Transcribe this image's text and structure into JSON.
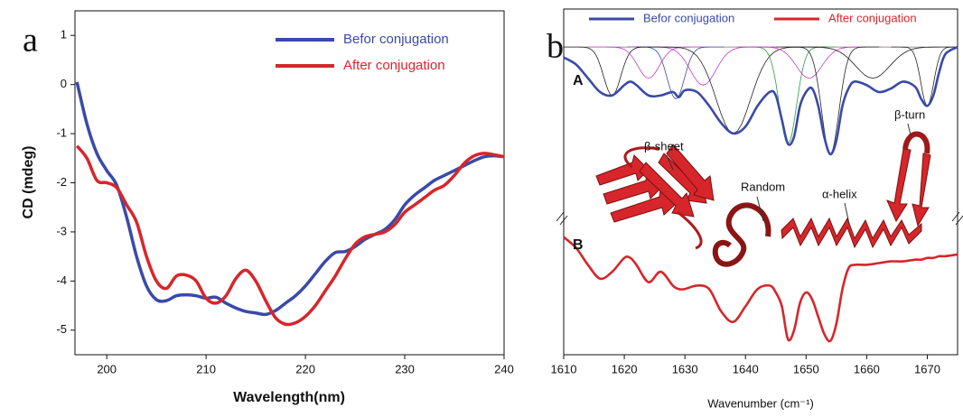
{
  "chart_data": [
    {
      "type": "line",
      "panel_label": "a",
      "x_label": "Wavelength(nm)",
      "y_label": "CD (mdeg)",
      "xlim": [
        196.8,
        240
      ],
      "xticks": [
        200,
        210,
        220,
        230,
        240
      ],
      "ylim": [
        -5.5,
        1.5
      ],
      "yticks": [
        1,
        0,
        -1,
        -2,
        -3,
        -4,
        -5
      ],
      "legend": "upper right",
      "x": [
        197,
        198,
        199,
        200,
        201,
        202,
        203,
        204,
        205,
        206,
        207,
        208,
        209,
        210,
        211,
        212,
        213,
        214,
        215,
        216,
        217,
        218,
        219,
        220,
        221,
        222,
        223,
        224,
        225,
        226,
        227,
        228,
        229,
        230,
        231,
        232,
        233,
        234,
        235,
        236,
        237,
        238,
        239,
        240
      ],
      "series": [
        {
          "name": "Befor conjugation",
          "color": "#3a4aa8",
          "values": [
            0.05,
            -0.8,
            -1.4,
            -1.75,
            -2.05,
            -2.7,
            -3.5,
            -4.1,
            -4.38,
            -4.4,
            -4.3,
            -4.28,
            -4.3,
            -4.35,
            -4.33,
            -4.45,
            -4.55,
            -4.62,
            -4.65,
            -4.68,
            -4.6,
            -4.45,
            -4.3,
            -4.1,
            -3.85,
            -3.6,
            -3.42,
            -3.4,
            -3.3,
            -3.15,
            -3.05,
            -2.95,
            -2.75,
            -2.45,
            -2.25,
            -2.1,
            -1.95,
            -1.85,
            -1.75,
            -1.65,
            -1.55,
            -1.47,
            -1.45,
            -1.47
          ]
        },
        {
          "name": "After conjugation",
          "color": "#d7262b",
          "values": [
            -1.25,
            -1.5,
            -1.95,
            -2.0,
            -2.1,
            -2.45,
            -2.8,
            -3.5,
            -4.0,
            -4.15,
            -3.9,
            -3.88,
            -4.0,
            -4.35,
            -4.45,
            -4.3,
            -3.95,
            -3.78,
            -4.0,
            -4.4,
            -4.75,
            -4.88,
            -4.85,
            -4.72,
            -4.5,
            -4.2,
            -3.9,
            -3.55,
            -3.25,
            -3.1,
            -3.05,
            -3.0,
            -2.85,
            -2.6,
            -2.45,
            -2.3,
            -2.15,
            -2.05,
            -1.85,
            -1.6,
            -1.45,
            -1.4,
            -1.43,
            -1.47
          ]
        }
      ]
    },
    {
      "type": "line",
      "panel_label": "b",
      "x_label": "Wavenumber (cm⁻¹)",
      "xlim": [
        1610,
        1675
      ],
      "xticks": [
        1610,
        1620,
        1630,
        1640,
        1650,
        1660,
        1670
      ],
      "ylim": [
        0,
        100
      ],
      "legend": "top",
      "x": [
        1610,
        1612,
        1614,
        1616,
        1618,
        1620,
        1621,
        1622,
        1624,
        1626,
        1628,
        1629,
        1630,
        1632,
        1634,
        1636,
        1638,
        1640,
        1642,
        1644,
        1645,
        1646,
        1647,
        1648,
        1649,
        1650,
        1651,
        1652,
        1653,
        1654,
        1655,
        1656,
        1657,
        1658,
        1660,
        1662,
        1664,
        1666,
        1668,
        1669,
        1670,
        1671,
        1672,
        1673,
        1675
      ],
      "series": [
        {
          "name": "Befor conjugation",
          "tag": "A",
          "color": "#3a4aa8",
          "values": [
            86,
            84,
            80,
            76,
            75,
            78,
            79,
            78,
            75,
            75,
            76,
            74.5,
            76.5,
            76,
            72,
            67,
            64,
            66,
            72,
            76,
            75,
            68,
            61,
            63,
            72,
            76,
            77,
            72,
            63,
            58,
            62,
            72,
            77,
            79,
            78,
            76,
            77,
            79,
            77.5,
            74,
            72,
            75,
            82,
            87,
            89
          ]
        },
        {
          "name": "After conjugation",
          "tag": "B",
          "color": "#d7262b",
          "values": [
            34,
            31,
            26,
            22,
            24,
            28,
            28,
            26,
            21,
            24,
            20,
            19,
            19,
            20,
            19,
            12.5,
            9.5,
            14,
            19,
            20,
            18,
            14,
            4.5,
            7,
            15,
            18,
            16,
            11,
            6,
            4,
            9,
            19,
            25,
            26,
            26,
            26.5,
            27,
            27,
            27.5,
            27.5,
            28,
            28,
            28.5,
            28.5,
            29
          ]
        }
      ],
      "baseline": 89,
      "components": [
        {
          "center": 1618,
          "depth": 75,
          "width": 2,
          "color": "#222222"
        },
        {
          "center": 1624,
          "depth": 80,
          "width": 2.5,
          "color": "#c03cc0"
        },
        {
          "center": 1628.5,
          "depth": 74,
          "width": 2,
          "color": "#3a4aa8"
        },
        {
          "center": 1633,
          "depth": 78,
          "width": 3,
          "color": "#c03cc0"
        },
        {
          "center": 1638,
          "depth": 64,
          "width": 4,
          "color": "#222222"
        },
        {
          "center": 1647,
          "depth": 61,
          "width": 2,
          "color": "#2e9a3e"
        },
        {
          "center": 1650.5,
          "depth": 80,
          "width": 3,
          "color": "#c03cc0"
        },
        {
          "center": 1654,
          "depth": 58,
          "width": 2,
          "color": "#222222"
        },
        {
          "center": 1661,
          "depth": 80,
          "width": 4,
          "color": "#222222"
        },
        {
          "center": 1670,
          "depth": 72,
          "width": 1.5,
          "color": "#222222"
        }
      ],
      "annotations": [
        "β-sheet",
        "Random",
        "α-helix",
        "β-turn"
      ]
    }
  ]
}
